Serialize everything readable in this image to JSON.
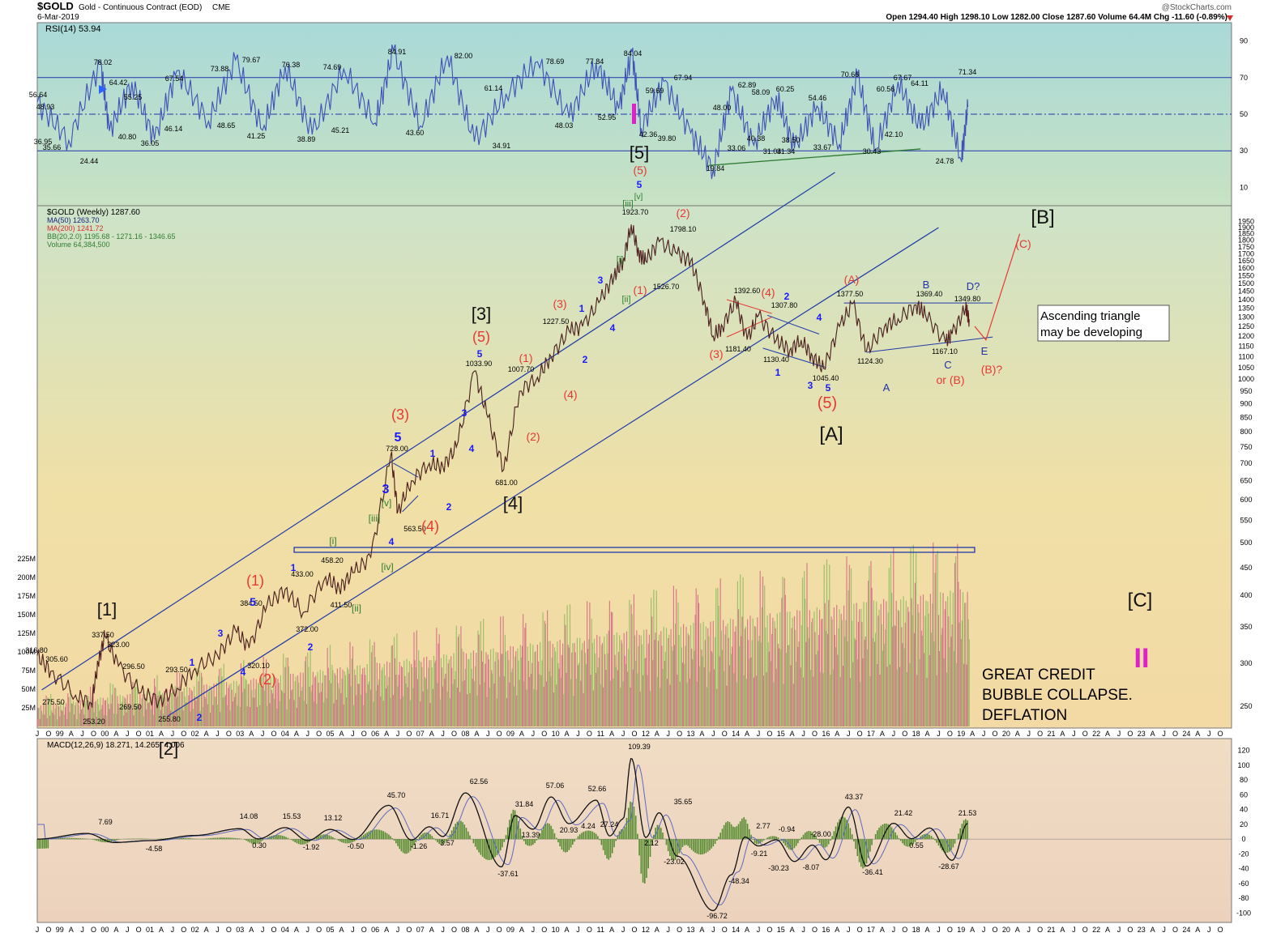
{
  "header": {
    "symbol": "$GOLD",
    "name": "Gold - Continuous Contract (EOD)",
    "exchange": "CME",
    "date": "6-Mar-2019",
    "ohlc": "Open 1294.40  High 1298.10  Low 1282.00  Close 1287.60  Volume 64.4M  Chg -11.60 (-0.89%)",
    "watermark": "@StockCharts.com"
  },
  "chart_data": [
    {
      "type": "line",
      "panel": "RSI",
      "title": "RSI(14) 53.94",
      "ylim": [
        0,
        100
      ],
      "ticks": [
        "10",
        "30",
        "50",
        "70",
        "90"
      ],
      "reference_lines": [
        30,
        50,
        70
      ],
      "x": [
        1998.5,
        1999.2,
        1999.9,
        2000.1,
        2000.6,
        2001.1,
        2001.6,
        2002.3,
        2002.9,
        2003.5,
        2004.0,
        2004.6,
        2005.3,
        2006.0,
        2006.4,
        2007.0,
        2007.6,
        2008.2,
        2008.9,
        2009.6,
        2010.3,
        2010.9,
        2011.4,
        2011.7,
        2011.9,
        2012.4,
        2013.0,
        2013.5,
        2013.9,
        2014.4,
        2014.9,
        2015.3,
        2015.8,
        2016.3,
        2016.7,
        2017.1,
        2017.6,
        2018.1,
        2018.6,
        2019.0,
        2019.15
      ],
      "values": [
        56.64,
        35.66,
        78.02,
        40.8,
        67.54,
        36.05,
        73.88,
        46.14,
        79.67,
        41.25,
        76.38,
        38.89,
        74.69,
        45.21,
        84.91,
        43.6,
        82.0,
        34.91,
        61.14,
        78.69,
        48.03,
        77.84,
        52.95,
        84.04,
        42.36,
        67.94,
        39.8,
        19.84,
        62.89,
        33.06,
        60.25,
        31.34,
        54.46,
        33.67,
        70.66,
        30.43,
        67.67,
        42.1,
        64.11,
        24.78,
        53.94
      ],
      "labels": [
        "56.64",
        "48.93",
        "36.95",
        "35.66",
        "24.44",
        "78.02",
        "64.42",
        "55.25",
        "40.80",
        "67.54",
        "36.05",
        "46.14",
        "73.88",
        "48.65",
        "79.67",
        "41.25",
        "76.38",
        "38.89",
        "74.69",
        "45.21",
        "84.91",
        "43.60",
        "82.00",
        "34.91",
        "61.14",
        "78.69",
        "48.03",
        "77.84",
        "52.95",
        "84.04",
        "59.69",
        "42.36",
        "39.80",
        "67.94",
        "48.00",
        "19.84",
        "62.89",
        "33.06",
        "58.09",
        "40.38",
        "31.04",
        "60.25",
        "38.50",
        "31.34",
        "54.46",
        "33.67",
        "70.66",
        "30.43",
        "60.56",
        "67.67",
        "42.10",
        "64.11",
        "24.78",
        "71.34"
      ]
    },
    {
      "type": "line",
      "panel": "Price",
      "title": "$GOLD (Weekly) 1287.60",
      "scale": "log",
      "ylim": [
        240,
        2000
      ],
      "ticks": [
        "250",
        "300",
        "350",
        "400",
        "450",
        "500",
        "550",
        "600",
        "650",
        "700",
        "750",
        "800",
        "850",
        "900",
        "950",
        "1000",
        "1050",
        "1100",
        "1150",
        "1200",
        "1250",
        "1300",
        "1350",
        "1400",
        "1450",
        "1500",
        "1550",
        "1600",
        "1650",
        "1700",
        "1750",
        "1800",
        "1850",
        "1900",
        "1950"
      ],
      "volume_ticks": [
        "25M",
        "50M",
        "75M",
        "100M",
        "125M",
        "150M",
        "175M",
        "200M",
        "225M"
      ],
      "legend": [
        {
          "text": "MA(50) 1263.70",
          "color": "#1a237e"
        },
        {
          "text": "MA(200) 1241.72",
          "color": "#d32f2f"
        },
        {
          "text": "BB(20,2.0) 1195.68 - 1271.16 - 1346.65",
          "color": "#2e7d32"
        },
        {
          "text": "Volume 64,384,500",
          "color": "#2e7d32"
        }
      ],
      "x": [
        1998.5,
        1998.8,
        1999.35,
        1999.7,
        1999.85,
        2000.0,
        2000.3,
        2000.8,
        2001.2,
        2001.6,
        2002.0,
        2002.5,
        2002.9,
        2003.2,
        2003.6,
        2004.0,
        2004.4,
        2004.9,
        2005.2,
        2005.5,
        2005.9,
        2006.35,
        2006.5,
        2006.8,
        2007.2,
        2007.5,
        2007.8,
        2008.2,
        2008.5,
        2008.85,
        2009.2,
        2009.6,
        2009.9,
        2010.3,
        2010.6,
        2011.0,
        2011.3,
        2011.5,
        2011.68,
        2011.85,
        2012.0,
        2012.3,
        2012.7,
        2013.0,
        2013.3,
        2013.5,
        2013.7,
        2014.0,
        2014.25,
        2014.5,
        2014.9,
        2015.2,
        2015.45,
        2015.7,
        2015.95,
        2016.3,
        2016.6,
        2016.9,
        2017.3,
        2017.6,
        2018.0,
        2018.2,
        2018.65,
        2018.8,
        2019.1,
        2019.18
      ],
      "values": [
        310,
        290,
        262,
        253.2,
        300,
        337.5,
        296.5,
        265,
        255.8,
        270,
        293.5,
        310,
        345,
        320.1,
        384.5,
        410,
        372,
        433,
        411.5,
        440,
        470,
        728,
        570,
        650,
        700,
        690,
        750,
        1033.9,
        850,
        681,
        950,
        1007.7,
        1100,
        1227.5,
        1250,
        1400,
        1550,
        1650,
        1923.7,
        1700,
        1650,
        1790.1,
        1700,
        1650,
        1392.6,
        1200,
        1250,
        1392.6,
        1181.4,
        1307.8,
        1180,
        1130.4,
        1180,
        1100,
        1045.4,
        1250,
        1377.5,
        1124.3,
        1250,
        1290,
        1369.4,
        1320,
        1167.1,
        1210,
        1349.8,
        1287.6
      ],
      "labels": [
        "316.80",
        "305.60",
        "275.50",
        "253.20",
        "337.50",
        "323.00",
        "296.50",
        "269.50",
        "293.50",
        "255.80",
        "384.50",
        "320.10",
        "433.00",
        "458.20",
        "411.50",
        "372.00",
        "728.00",
        "563.50",
        "1033.90",
        "1007.70",
        "681.00",
        "1227.50",
        "1923.70",
        "1798.10",
        "1526.70",
        "1392.60",
        "1307.80",
        "1181.40",
        "1130.40",
        "1045.40",
        "1377.50",
        "1124.30",
        "1369.40",
        "1167.10",
        "1349.80"
      ],
      "wave_labels": [
        "[1]",
        "[2]",
        "[3]",
        "[4]",
        "[5]",
        "[A]",
        "[B]",
        "[C]",
        "(1)",
        "(2)",
        "(3)",
        "(4)",
        "(5)",
        "(A)",
        "(B)?",
        "(C)",
        "A",
        "B",
        "C",
        "D?",
        "E",
        "or (B)",
        "1",
        "2",
        "3",
        "4",
        "5",
        "[i]",
        "[ii]",
        "[iii]",
        "[iv]",
        "[v]",
        "II"
      ],
      "annotations": [
        "Ascending triangle may be developing",
        "GREAT CREDIT",
        "BUBBLE COLLAPSE.",
        "DEFLATION"
      ]
    },
    {
      "type": "line",
      "panel": "MACD",
      "title": "MACD(12,26,9) 18.271, 14.265, 4.006",
      "ylim": [
        -105,
        125
      ],
      "ticks": [
        "-100",
        "-80",
        "-60",
        "-40",
        "-20",
        "0",
        "20",
        "40",
        "60",
        "80",
        "100",
        "120"
      ],
      "x": [
        1998.5,
        1999.6,
        2000.2,
        2001.0,
        2002.0,
        2003.0,
        2003.4,
        2004.0,
        2004.5,
        2005.0,
        2005.5,
        2006.3,
        2006.8,
        2007.2,
        2007.5,
        2008.0,
        2008.8,
        2009.1,
        2009.5,
        2009.9,
        2010.3,
        2010.9,
        2011.2,
        2011.5,
        2011.68,
        2012.0,
        2012.3,
        2012.7,
        2013.5,
        2013.9,
        2014.2,
        2014.5,
        2014.9,
        2015.3,
        2015.7,
        2016.0,
        2016.5,
        2016.9,
        2017.5,
        2017.9,
        2018.3,
        2018.8,
        2019.15
      ],
      "values": [
        0,
        7.69,
        -4.58,
        -2,
        5,
        14.08,
        0.3,
        15.53,
        -1.92,
        13.12,
        -0.5,
        45.7,
        -1.26,
        16.71,
        3.57,
        62.56,
        -37.61,
        31.84,
        13.39,
        57.06,
        20.93,
        52.66,
        4.24,
        27.24,
        109.39,
        2.12,
        35.65,
        -23.02,
        -96.72,
        -48.34,
        2.77,
        -9.21,
        -0.94,
        -30.23,
        -8.07,
        -28.0,
        43.37,
        -36.41,
        21.42,
        0.55,
        15,
        -28.67,
        21.53
      ],
      "labels": [
        "7.69",
        "-4.58",
        "14.08",
        "0.30",
        "15.53",
        "-1.92",
        "13.12",
        "-0.50",
        "45.70",
        "-1.26",
        "16.71",
        "3.57",
        "62.56",
        "-37.61",
        "31.84",
        "13.39",
        "57.06",
        "20.93",
        "4.24",
        "52.66",
        "27.24",
        "109.39",
        "2.12",
        "35.65",
        "-23.02",
        "-96.72",
        "-48.34",
        "2.77",
        "-9.21",
        "-0.94",
        "-30.23",
        "-8.07",
        "-28.00",
        "43.37",
        "-36.41",
        "21.42",
        "0.55",
        "-28.67",
        "21.53"
      ]
    }
  ],
  "x_axis": {
    "years": [
      "99",
      "00",
      "01",
      "02",
      "03",
      "04",
      "05",
      "06",
      "07",
      "08",
      "09",
      "10",
      "11",
      "12",
      "13",
      "14",
      "15",
      "16",
      "17",
      "18",
      "19",
      "20",
      "21",
      "22",
      "23",
      "24"
    ],
    "months": [
      "J",
      "A",
      "J",
      "O"
    ],
    "range": [
      1998.5,
      2025.0
    ]
  },
  "colors": {
    "rsi_line": "#3f51b5",
    "price_line": "#000000",
    "channel": "#1e3aaa",
    "wave_red": "#e53935",
    "wave_blue": "#1a1aff",
    "wave_green": "#2e7d32",
    "volume": "#c2185b",
    "macd_hist": "#558b2f",
    "magenta": "#e020c8"
  }
}
